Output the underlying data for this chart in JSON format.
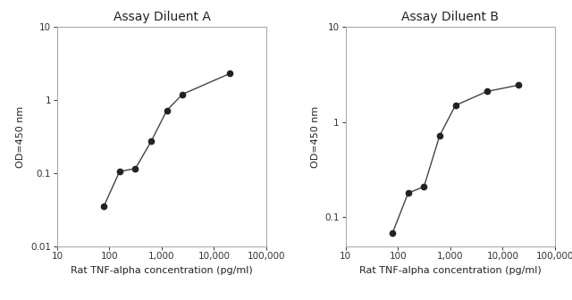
{
  "chart_A": {
    "title": "Assay Diluent A",
    "x": [
      78,
      156,
      313,
      625,
      1250,
      2500,
      20000
    ],
    "y": [
      0.035,
      0.105,
      0.115,
      0.27,
      0.72,
      1.2,
      2.3
    ],
    "xlim": [
      10,
      100000
    ],
    "ylim": [
      0.01,
      10
    ],
    "xlabel": "Rat TNF-alpha concentration (pg/ml)",
    "ylabel": "OD=450 nm"
  },
  "chart_B": {
    "title": "Assay Diluent B",
    "x": [
      78,
      156,
      313,
      625,
      1250,
      5000,
      20000
    ],
    "y": [
      0.068,
      0.18,
      0.21,
      0.72,
      1.5,
      2.1,
      2.45
    ],
    "xlim": [
      10,
      100000
    ],
    "ylim": [
      0.05,
      10
    ],
    "xlabel": "Rat TNF-alpha concentration (pg/ml)",
    "ylabel": "OD=450 nm"
  },
  "line_color": "#444444",
  "marker_color": "#222222",
  "marker_size": 4.5,
  "bg_color": "#ffffff",
  "axes_color": "#aaaaaa",
  "title_fontsize": 10,
  "label_fontsize": 8,
  "tick_fontsize": 7.5
}
